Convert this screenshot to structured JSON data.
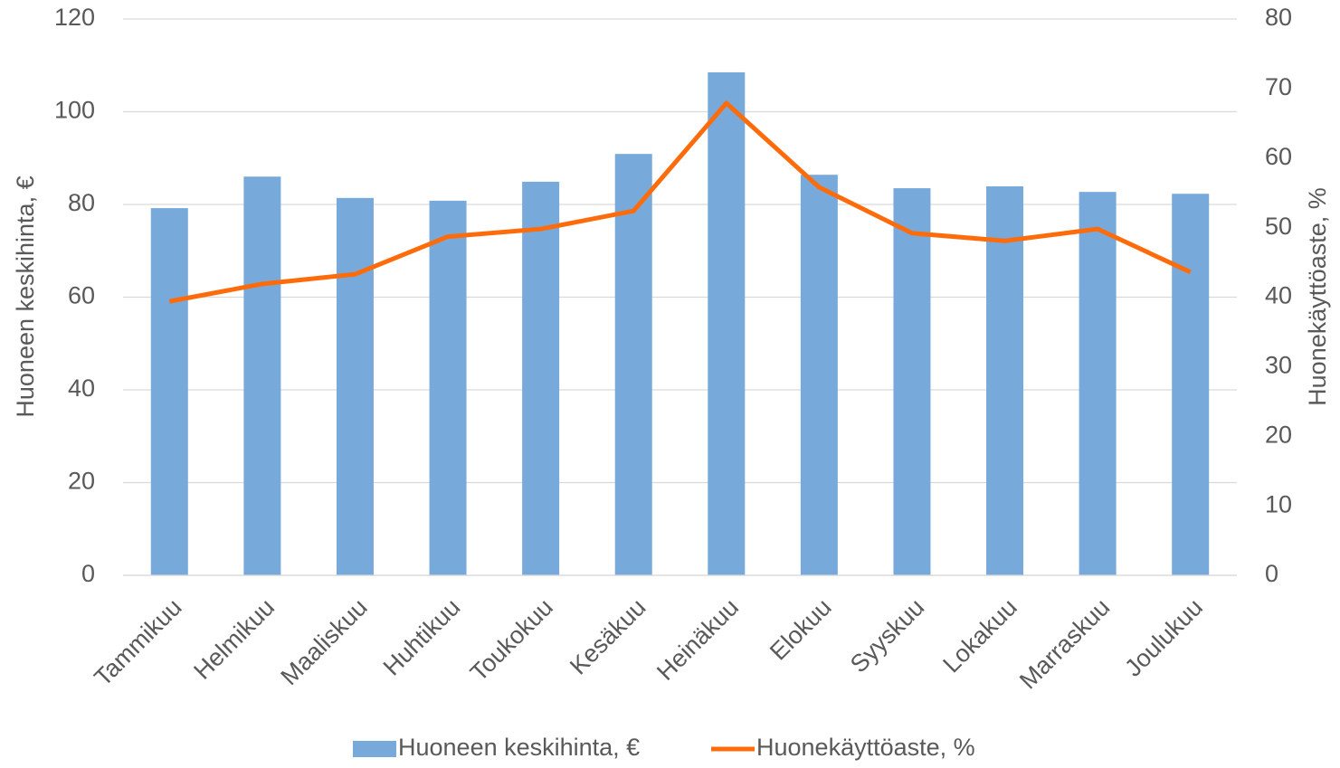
{
  "chart_data": {
    "type": "bar",
    "categories": [
      "Tammikuu",
      "Helmikuu",
      "Maaliskuu",
      "Huhtikuu",
      "Toukokuu",
      "Kesäkuu",
      "Heinäkuu",
      "Elokuu",
      "Syyskuu",
      "Lokakuu",
      "Marraskuu",
      "Joulukuu"
    ],
    "series": [
      {
        "name": "Huoneen keskihinta, €",
        "color": "#77aadb",
        "values": [
          79.2,
          86.0,
          81.4,
          80.8,
          84.9,
          90.9,
          108.5,
          86.4,
          83.5,
          83.9,
          82.7,
          82.3
        ]
      },
      {
        "name": "Huonekäyttöaste, %",
        "color": "#fe6b0b",
        "type": "line",
        "axis": "y2",
        "values": [
          39.4,
          41.9,
          43.3,
          48.7,
          49.8,
          52.4,
          67.9,
          55.8,
          49.2,
          48.1,
          49.8,
          43.6
        ]
      }
    ],
    "y_label": "Huoneen keskihinta, €",
    "y2_label": "Huonekäyttöaste, %",
    "ylim": [
      0,
      120
    ],
    "yticks": [
      0,
      20,
      40,
      60,
      80,
      100,
      120
    ],
    "y2lim": [
      0,
      80
    ],
    "y2ticks": [
      0,
      10,
      20,
      30,
      40,
      50,
      60,
      70,
      80
    ],
    "grid": true,
    "legend": "bottom"
  }
}
